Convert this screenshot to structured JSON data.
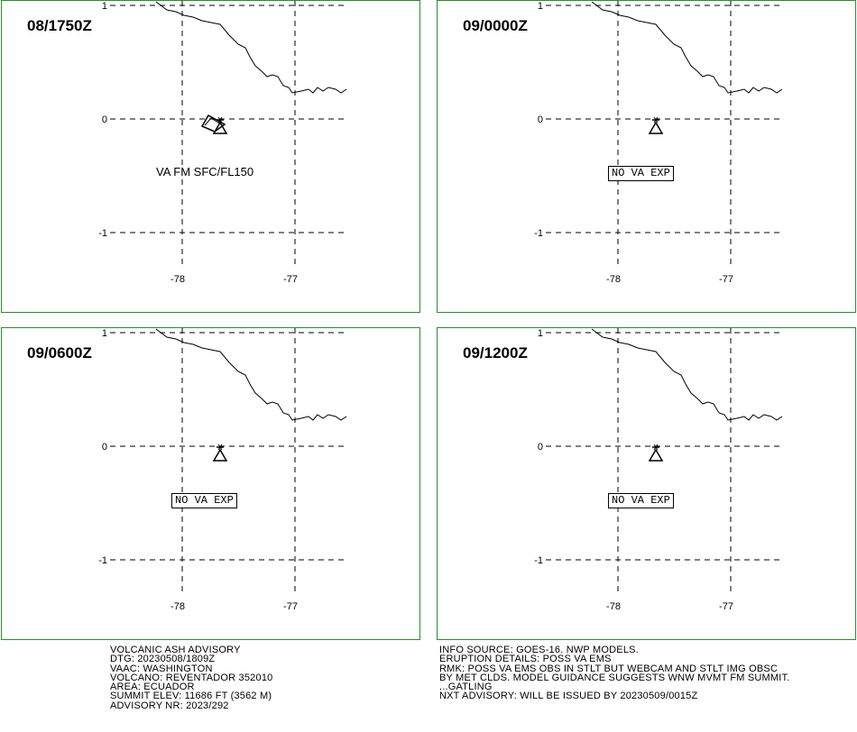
{
  "panels": [
    {
      "time": "08/1750Z",
      "ash_label": "VA FM SFC/FL150",
      "no_va_label": "",
      "lat_ticks": [
        "1",
        "0",
        "-1"
      ],
      "lon_ticks": [
        "-78",
        "-77"
      ]
    },
    {
      "time": "09/0000Z",
      "ash_label": "",
      "no_va_label": "NO VA EXP",
      "lat_ticks": [
        "1",
        "0",
        "-1"
      ],
      "lon_ticks": [
        "-78",
        "-77"
      ]
    },
    {
      "time": "09/0600Z",
      "ash_label": "",
      "no_va_label": "NO VA EXP",
      "lat_ticks": [
        "1",
        "0",
        "-1"
      ],
      "lon_ticks": [
        "-78",
        "-77"
      ]
    },
    {
      "time": "09/1200Z",
      "ash_label": "",
      "no_va_label": "NO VA EXP",
      "lat_ticks": [
        "1",
        "0",
        "-1"
      ],
      "lon_ticks": [
        "-78",
        "-77"
      ]
    }
  ],
  "advisory_left": [
    "VOLCANIC ASH ADVISORY",
    "DTG: 20230508/1809Z",
    "VAAC: WASHINGTON",
    "VOLCANO: REVENTADOR 352010",
    "AREA: ECUADOR",
    "SUMMIT ELEV: 11686 FT (3562 M)",
    "ADVISORY NR: 2023/292"
  ],
  "advisory_right": [
    "INFO SOURCE: GOES-16. NWP MODELS.",
    "ERUPTION DETAILS: POSS VA EMS",
    "RMK: POSS VA EMS OBS IN STLT BUT WEBCAM AND STLT IMG OBSC",
    "BY MET CLDS. MODEL GUIDANCE SUGGESTS WNW MVMT FM SUMMIT.",
    "...GATLING",
    "NXT ADVISORY: WILL BE ISSUED BY 20230509/0015Z"
  ],
  "icons": {
    "volcano": "volcano-icon",
    "ash_polygon": "ash-cloud-polygon"
  },
  "colors": {
    "panel_border": "#2e8b2e"
  }
}
